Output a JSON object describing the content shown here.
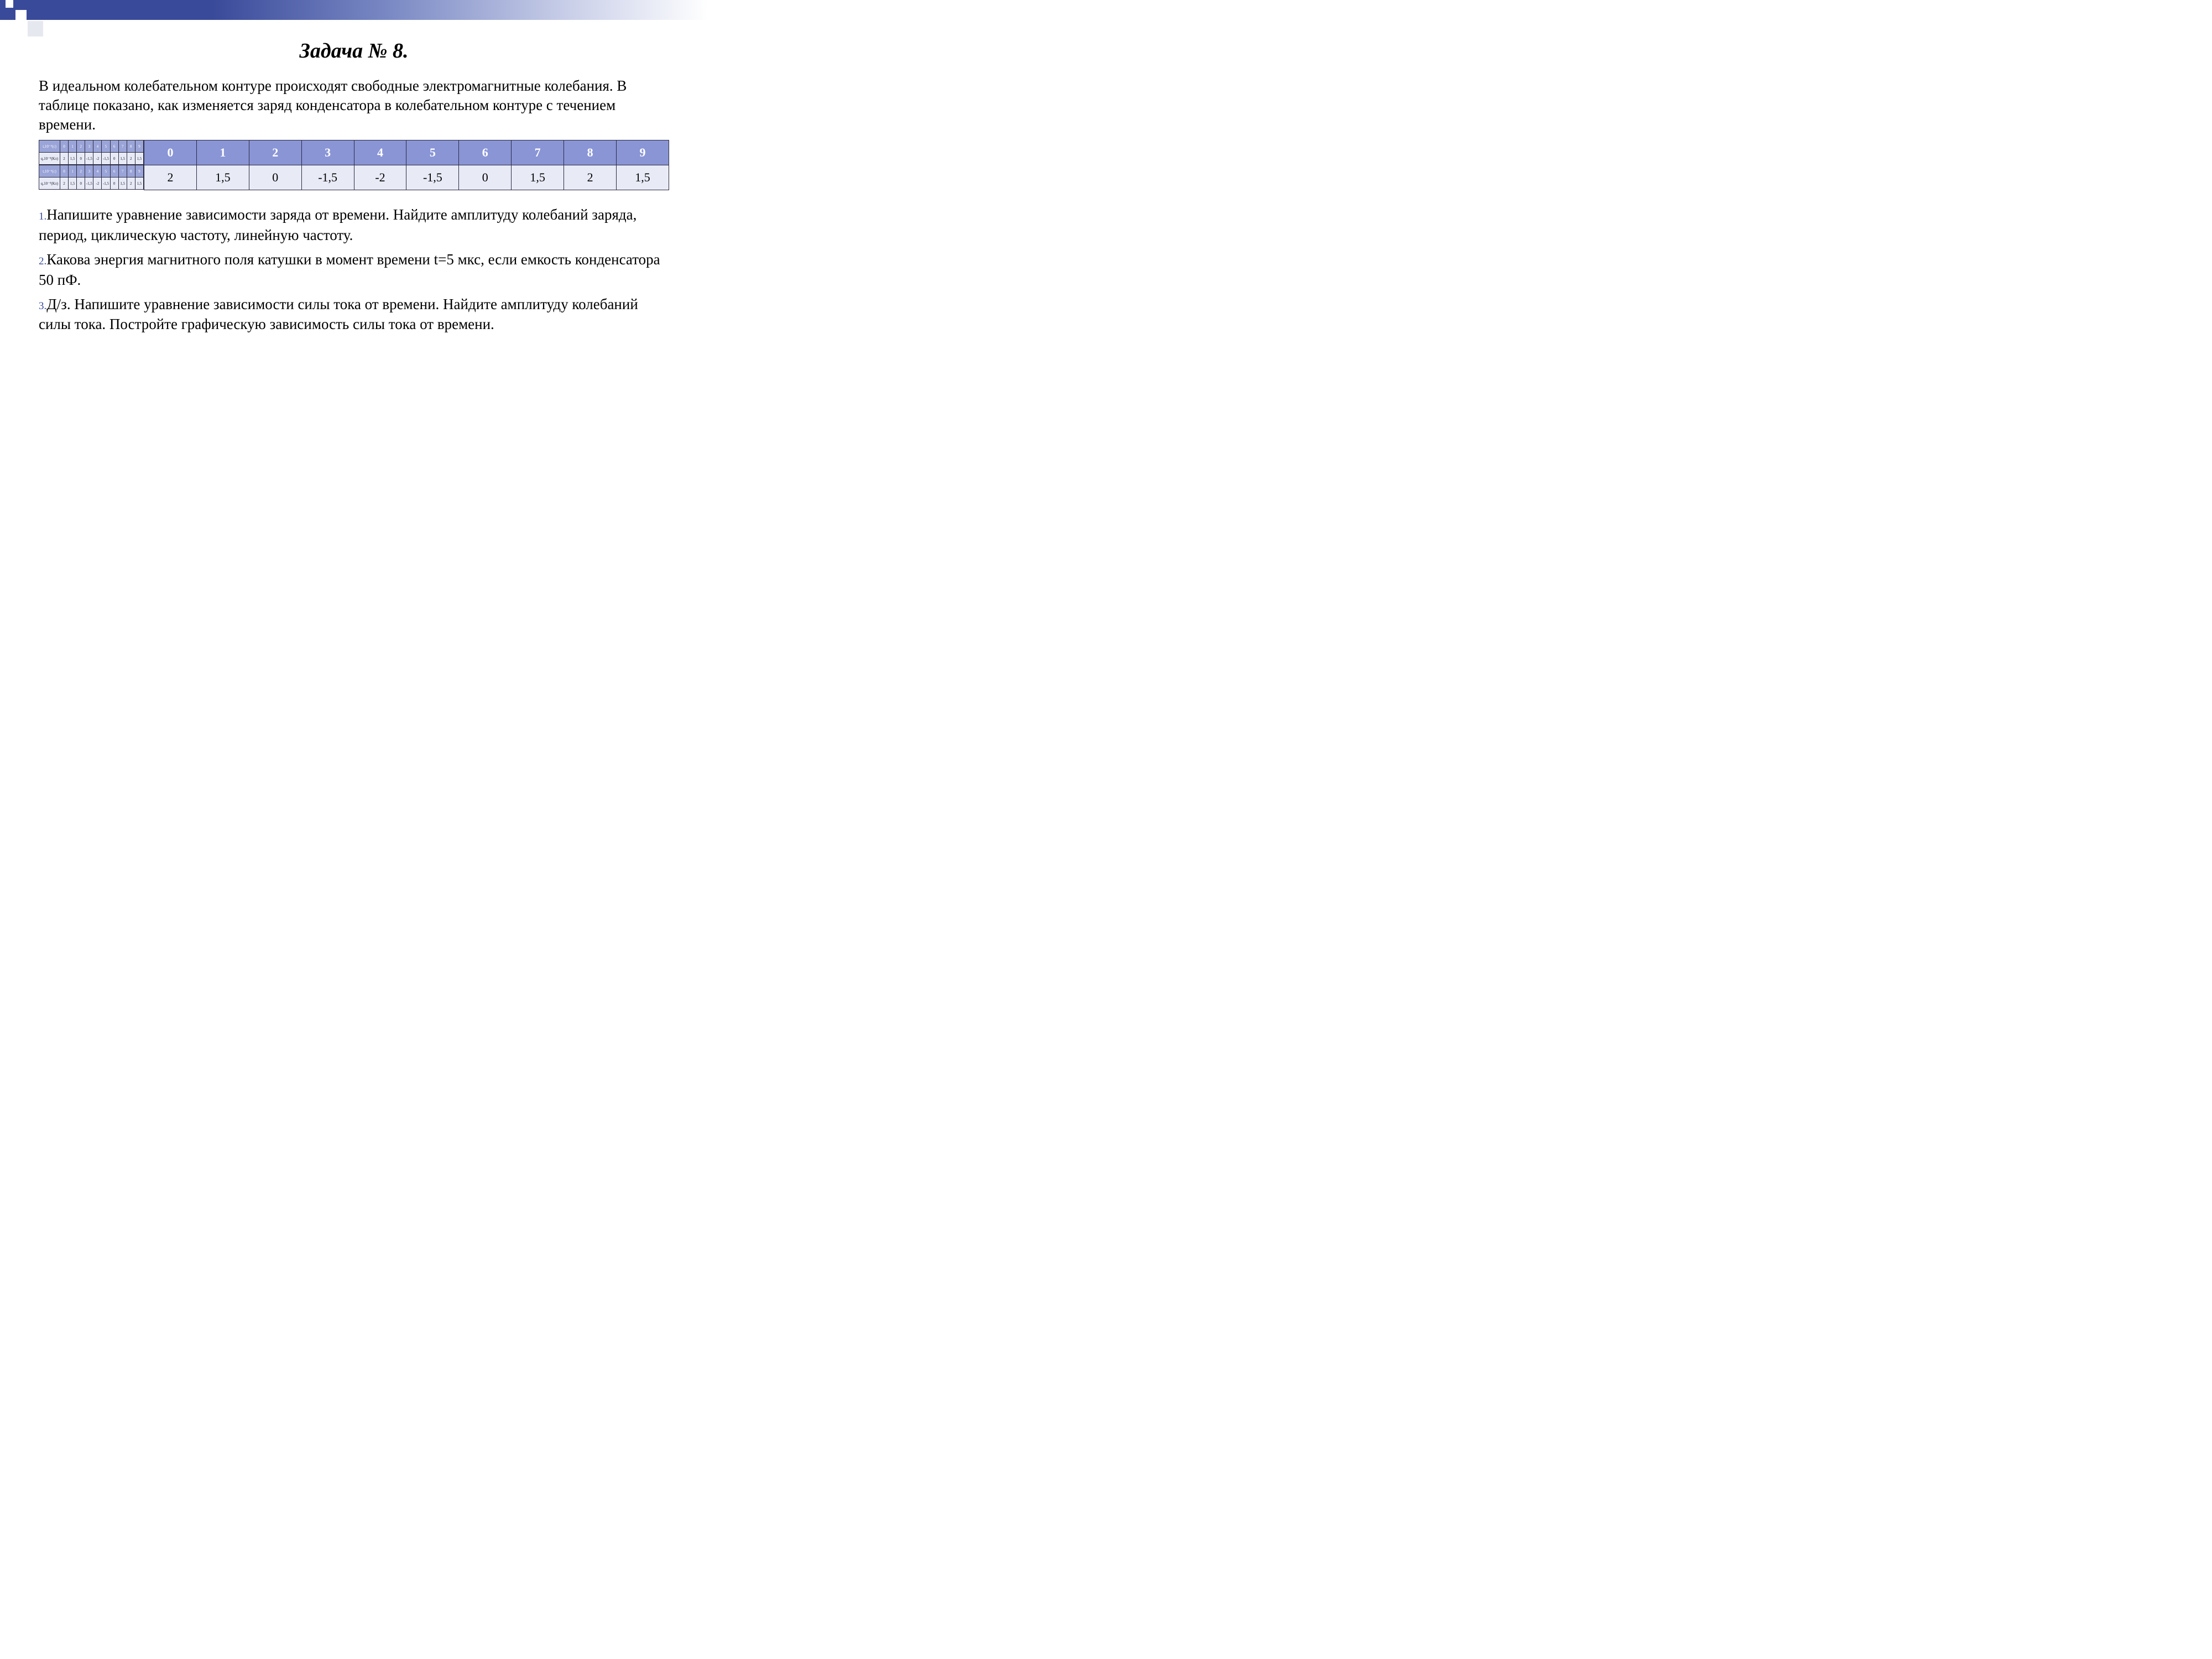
{
  "title": "Задача  № 8.",
  "intro": "В идеальном колебательном контуре происходят свободные электромагнитные колебания. В таблице показано, как изменяется заряд конденсатора в колебательном контуре с течением времени.",
  "table": {
    "header": [
      "0",
      "1",
      "2",
      "3",
      "4",
      "5",
      "6",
      "7",
      "8",
      "9"
    ],
    "row": [
      "2",
      "1,5",
      "0",
      "-1,5",
      "-2",
      "-1,5",
      "0",
      "1,5",
      "2",
      "1,5"
    ],
    "header_bg": "#8a95d6",
    "header_fg": "#ffffff",
    "cell_bg": "#e8eaf6",
    "border_color": "#2a2a40",
    "fontsize_header": 22,
    "fontsize_cell": 22
  },
  "mini_table": {
    "row1_label": "t,10⁻⁶(c)",
    "row1": [
      "0",
      "1",
      "2",
      "3",
      "4",
      "5",
      "6",
      "7",
      "8",
      "9"
    ],
    "row2_label": "q,10⁻⁹(Кл)",
    "row2": [
      "2",
      "1,5",
      "0",
      "-1,5",
      "-2",
      "-1,5",
      "0",
      "1,5",
      "2",
      "1,5"
    ]
  },
  "questions": {
    "q1_num": "1.",
    "q1": "Напишите уравнение зависимости заряда от времени. Найдите амплитуду колебаний заряда, период, циклическую  частоту, линейную частоту.",
    "q2_num": "2.",
    "q2": "Какова энергия магнитного поля катушки в момент времени t=5 мкс, если емкость конденсатора 50 пФ.",
    "q3_num": "3.",
    "q3": "Д/з. Напишите уравнение зависимости силы тока от времени. Найдите амплитуду колебаний силы тока. Постройте графическую зависимость силы тока от времени."
  },
  "decor": {
    "gradient_from": "#3a4a9a",
    "gradient_to": "#ffffff"
  }
}
